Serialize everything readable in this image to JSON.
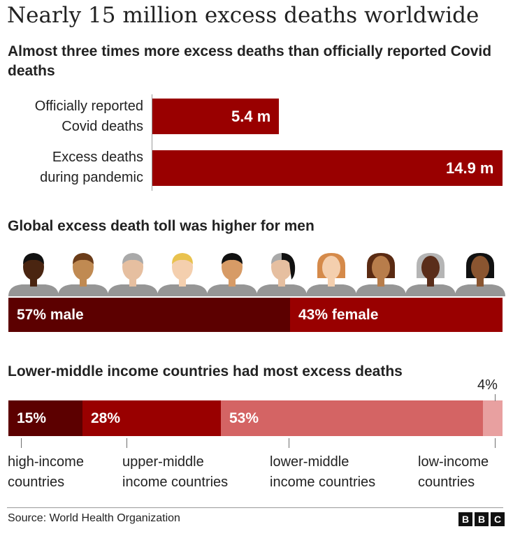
{
  "title": "Nearly 15 million excess deaths worldwide",
  "sections": {
    "deaths": {
      "title": "Almost three times more excess deaths than officially reported Covid deaths"
    },
    "gender": {
      "title": "Global excess death toll was higher for men"
    },
    "income": {
      "title": "Lower-middle income countries had most excess deaths"
    }
  },
  "chart_data": [
    {
      "type": "bar",
      "orientation": "horizontal",
      "title": "Almost three times more excess deaths than officially reported Covid deaths",
      "categories": [
        [
          "Officially reported",
          "Covid deaths"
        ],
        [
          "Excess deaths",
          "during pandemic"
        ]
      ],
      "values": [
        5.4,
        14.9
      ],
      "value_labels": [
        "5.4 m",
        "14.9 m"
      ],
      "unit": "million",
      "xlim": [
        0,
        14.9
      ]
    },
    {
      "type": "bar",
      "stacked": true,
      "title": "Global excess death toll was higher for men",
      "segments": [
        {
          "name": "male",
          "value": 57,
          "label": "57% male"
        },
        {
          "name": "female",
          "value": 43,
          "label": "43% female"
        }
      ],
      "unit": "%"
    },
    {
      "type": "bar",
      "stacked": true,
      "title": "Lower-middle income countries had most excess deaths",
      "segments": [
        {
          "name": [
            "high-income",
            "countries"
          ],
          "value": 15,
          "label": "15%"
        },
        {
          "name": [
            "upper-middle",
            "income countries"
          ],
          "value": 28,
          "label": "28%"
        },
        {
          "name": [
            "lower-middle",
            "income countries"
          ],
          "value": 53,
          "label": "53%"
        },
        {
          "name": [
            "low-income",
            "countries"
          ],
          "value": 4,
          "label": "4%"
        }
      ],
      "unit": "%"
    }
  ],
  "colors": {
    "bar": "#990000",
    "male": "#5c0000",
    "female": "#990000",
    "high_income": "#5c0000",
    "upper_middle": "#990000",
    "lower_middle": "#d46464",
    "low_income": "#e8a0a0"
  },
  "footer": {
    "source": "Source: World Health Organization",
    "logo": [
      "B",
      "B",
      "C"
    ]
  }
}
